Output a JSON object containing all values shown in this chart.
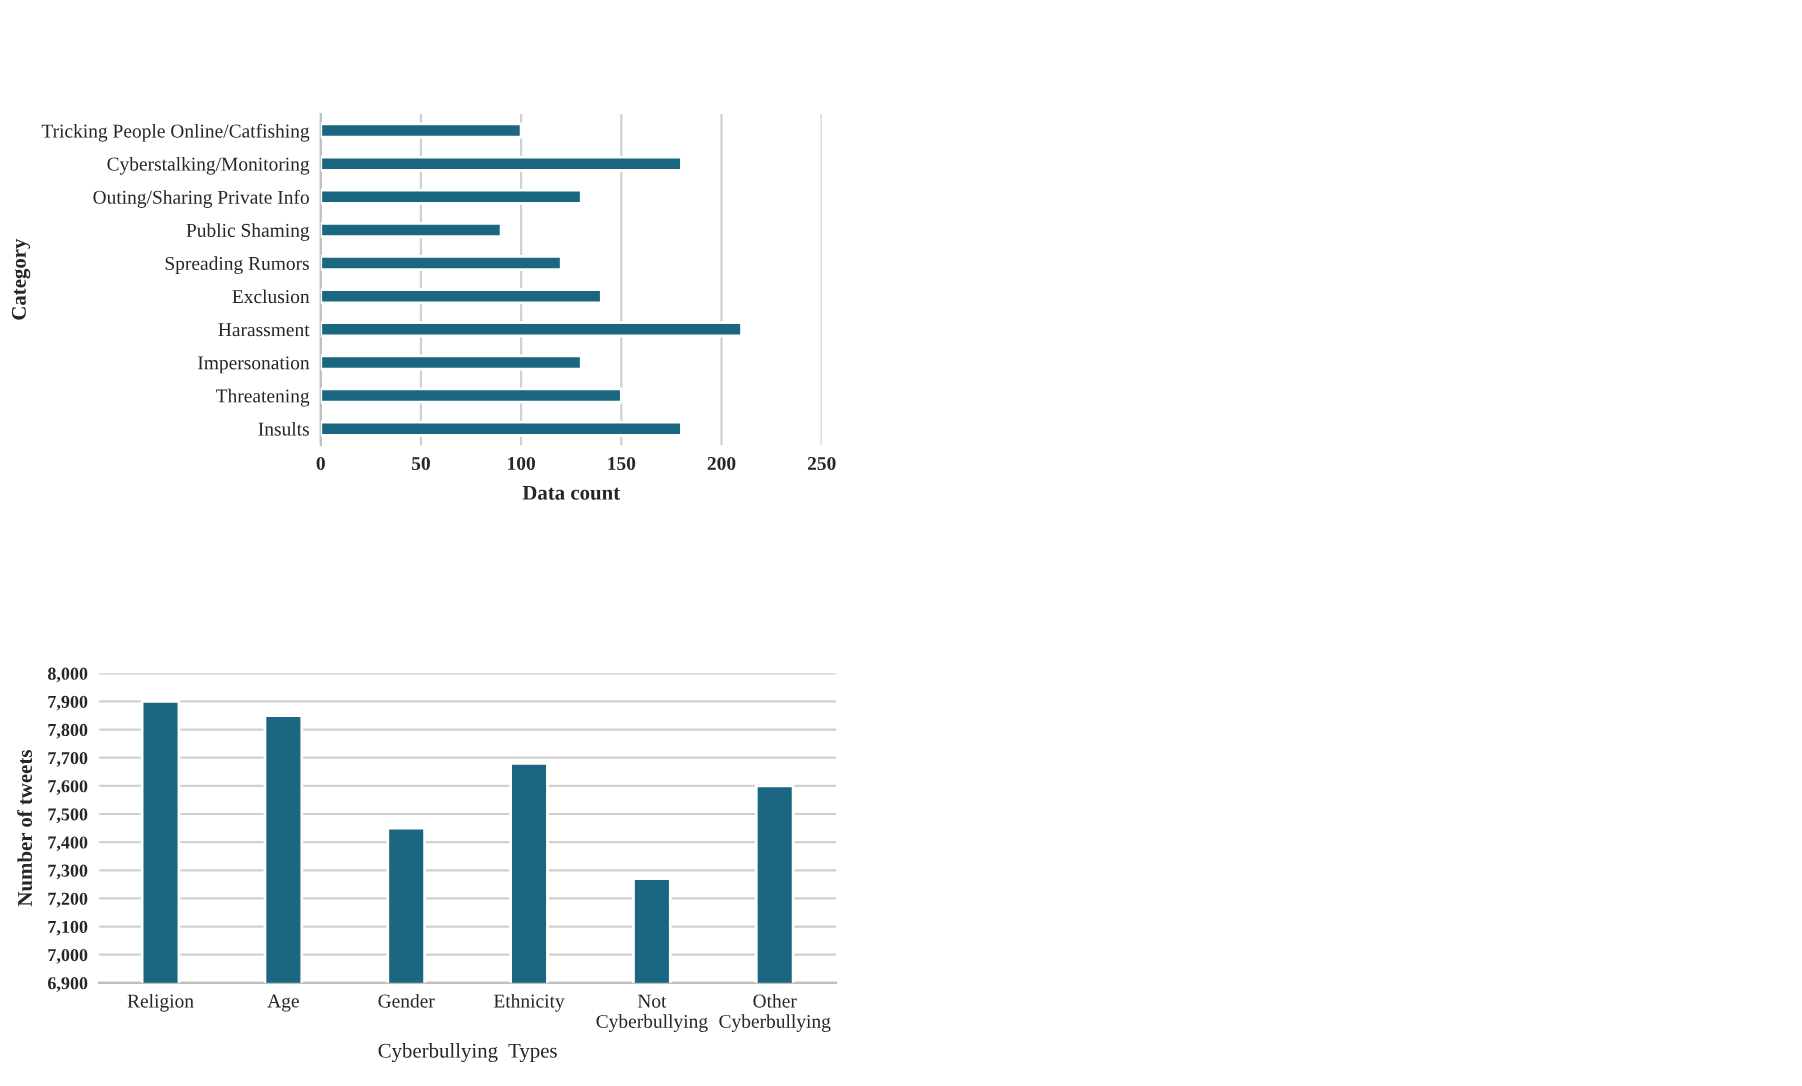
{
  "chart_data": [
    {
      "type": "bar",
      "orientation": "horizontal",
      "xlabel": "Data count",
      "ylabel": "Category",
      "categories": [
        "Tricking People Online/Catfishing",
        "Cyberstalking/Monitoring",
        "Outing/Sharing Private Info",
        "Public Shaming",
        "Spreading Rumors",
        "Exclusion",
        "Harassment",
        "Impersonation",
        "Threatening",
        "Insults"
      ],
      "values": [
        100,
        180,
        130,
        90,
        120,
        140,
        210,
        130,
        150,
        180
      ],
      "color": "#1b6680",
      "xlim": [
        0,
        250
      ],
      "xticks": [
        0,
        50,
        100,
        150,
        200,
        250
      ],
      "grid": "x"
    },
    {
      "type": "bar",
      "xlabel": "Cyberbullying  Types",
      "ylabel": "Number of tweets",
      "categories": [
        "Religion",
        "Age",
        "Gender",
        "Ethnicity",
        "Not\nCyberbullying",
        "Other\nCyberbullying"
      ],
      "values": [
        7900,
        7850,
        7450,
        7680,
        7270,
        7600
      ],
      "color": "#1b6680",
      "ylim": [
        6900,
        8000
      ],
      "yticks": [
        {
          "value": 6900,
          "label": "6,900"
        },
        {
          "value": 7000,
          "label": "7,000"
        },
        {
          "value": 7100,
          "label": "7,100"
        },
        {
          "value": 7200,
          "label": "7,200"
        },
        {
          "value": 7300,
          "label": "7,300"
        },
        {
          "value": 7400,
          "label": "7,400"
        },
        {
          "value": 7500,
          "label": "7,500"
        },
        {
          "value": 7600,
          "label": "7,600"
        },
        {
          "value": 7700,
          "label": "7,700"
        },
        {
          "value": 7800,
          "label": "7,800"
        },
        {
          "value": 7900,
          "label": "7,900"
        },
        {
          "value": 8000,
          "label": "8,000"
        }
      ],
      "grid": "y"
    }
  ]
}
